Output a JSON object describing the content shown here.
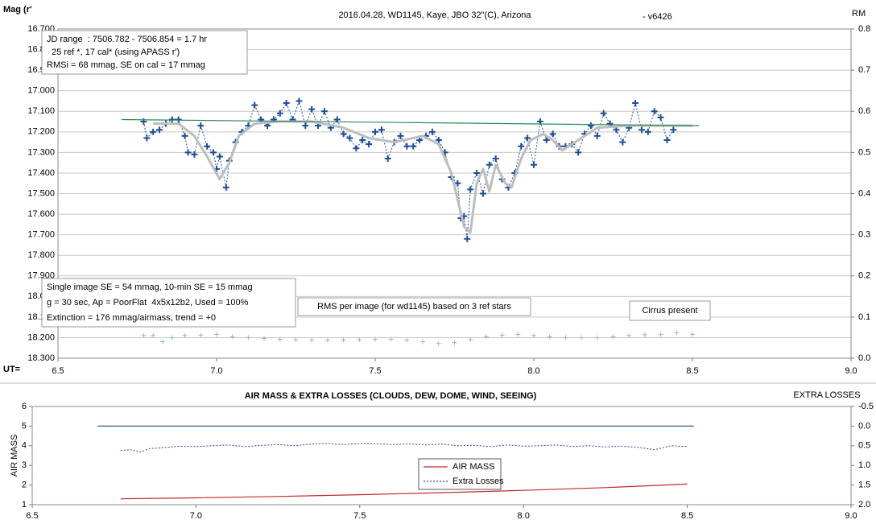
{
  "chart_data": [
    {
      "type": "line",
      "title": "2016.04.28,  WD1145, Kaye, JBO 32\"(C), Arizona",
      "subtitle": "- v6426",
      "ylabel": "Mag (r'",
      "y2label": "RM",
      "xlabel": "UT=",
      "xlim": [
        6.5,
        9.0
      ],
      "xticks": [
        6.5,
        {
          "value": 7.0,
          "label": "7.0"
        },
        7.5,
        {
          "value": 8.0,
          "label": "8.0"
        },
        8.5,
        {
          "value": 9.0,
          "label": "9.0"
        }
      ],
      "ylim": [
        16.7,
        18.3
      ],
      "y_reversed": true,
      "yticks": [
        {
          "value": 16.7,
          "label": "16.700"
        },
        {
          "value": 16.8,
          "label": "16.800"
        },
        {
          "value": 16.9,
          "label": "16.900"
        },
        {
          "value": 17.0,
          "label": "17.000"
        },
        {
          "value": 17.1,
          "label": "17.100"
        },
        {
          "value": 17.2,
          "label": "17.200"
        },
        {
          "value": 17.3,
          "label": "17.300"
        },
        {
          "value": 17.4,
          "label": "17.400"
        },
        {
          "value": 17.5,
          "label": "17.500"
        },
        {
          "value": 17.6,
          "label": "17.600"
        },
        {
          "value": 17.7,
          "label": "17.700"
        },
        {
          "value": 17.8,
          "label": "17.800"
        },
        {
          "value": 17.9,
          "label": "17.900"
        },
        {
          "value": 18.0,
          "label": "18.000"
        },
        {
          "value": 18.1,
          "label": "18.100"
        },
        {
          "value": 18.2,
          "label": "18.200"
        },
        {
          "value": 18.3,
          "label": "18.300"
        }
      ],
      "y2lim": [
        0.0,
        0.8
      ],
      "y2ticks": [
        {
          "value": 0.0,
          "label": "0.0"
        },
        0.1,
        0.2,
        0.3,
        0.4,
        0.5,
        0.6,
        0.7,
        0.8
      ],
      "grid": true,
      "annotations": [
        [
          "JD range  : 7506.782 - 7506.854 = 1.7 hr",
          "  25 ref *, 17 cal* (using APASS r')",
          "RMSi = 68 mmag, SE on cal = 17 mmag"
        ],
        [
          "Single image SE = 54 mmag, 10-min SE = 15 mmag",
          "g = 30 sec, Ap = PoorFlat  4x5x12b2, Used = 100%",
          "Extinction = 176 mmag/airmass, trend = +0"
        ],
        [
          "RMS per image (for wd1145) based on 3 ref stars"
        ],
        [
          "Cirrus present"
        ]
      ],
      "series": [
        {
          "color": "#1f4e9a",
          "line": "dashed",
          "marker": "plus",
          "x": [
            6.77,
            6.78,
            6.8,
            6.82,
            6.84,
            6.86,
            6.88,
            6.9,
            6.91,
            6.93,
            6.95,
            6.97,
            6.99,
            7.0,
            7.01,
            7.03,
            7.04,
            7.06,
            7.08,
            7.1,
            7.12,
            7.14,
            7.16,
            7.18,
            7.2,
            7.22,
            7.24,
            7.26,
            7.28,
            7.3,
            7.32,
            7.34,
            7.36,
            7.38,
            7.4,
            7.42,
            7.44,
            7.46,
            7.48,
            7.5,
            7.52,
            7.54,
            7.56,
            7.58,
            7.6,
            7.62,
            7.64,
            7.66,
            7.68,
            7.7,
            7.72,
            7.74,
            7.76,
            7.77,
            7.78,
            7.79,
            7.8,
            7.82,
            7.84,
            7.86,
            7.88,
            7.9,
            7.92,
            7.94,
            7.96,
            7.98,
            8.0,
            8.02,
            8.04,
            8.06,
            8.08,
            8.1,
            8.12,
            8.14,
            8.16,
            8.18,
            8.2,
            8.22,
            8.24,
            8.26,
            8.28,
            8.3,
            8.32,
            8.34,
            8.36,
            8.38,
            8.4,
            8.42,
            8.44
          ],
          "values": [
            17.15,
            17.23,
            17.2,
            17.19,
            17.16,
            17.14,
            17.14,
            17.22,
            17.3,
            17.31,
            17.17,
            17.27,
            17.3,
            17.38,
            17.32,
            17.47,
            17.34,
            17.25,
            17.2,
            17.17,
            17.07,
            17.14,
            17.17,
            17.14,
            17.11,
            17.06,
            17.14,
            17.05,
            17.17,
            17.09,
            17.17,
            17.1,
            17.18,
            17.14,
            17.21,
            17.23,
            17.28,
            17.24,
            17.26,
            17.2,
            17.19,
            17.33,
            17.25,
            17.22,
            17.27,
            17.27,
            17.24,
            17.22,
            17.2,
            17.24,
            17.3,
            17.42,
            17.45,
            17.62,
            17.61,
            17.72,
            17.48,
            17.4,
            17.5,
            17.36,
            17.33,
            17.43,
            17.47,
            17.4,
            17.27,
            17.23,
            17.36,
            17.15,
            17.24,
            17.21,
            17.27,
            17.27,
            17.26,
            17.3,
            17.21,
            17.17,
            17.22,
            17.11,
            17.16,
            17.19,
            17.25,
            17.18,
            17.06,
            17.19,
            17.2,
            17.1,
            17.13,
            17.24,
            17.19
          ]
        },
        {
          "color": "#bdbdbd",
          "line": "solid",
          "width": 3,
          "x": [
            6.8,
            6.88,
            6.93,
            6.97,
            7.01,
            7.04,
            7.07,
            7.12,
            7.2,
            7.3,
            7.4,
            7.48,
            7.56,
            7.65,
            7.7,
            7.74,
            7.78,
            7.8,
            7.82,
            7.84,
            7.86,
            7.88,
            7.91,
            7.93,
            7.96,
            7.99,
            8.03,
            8.06,
            8.09,
            8.14,
            8.2,
            8.3,
            8.5
          ],
          "values": [
            17.16,
            17.16,
            17.22,
            17.32,
            17.43,
            17.35,
            17.22,
            17.16,
            17.15,
            17.15,
            17.18,
            17.23,
            17.25,
            17.22,
            17.26,
            17.4,
            17.66,
            17.69,
            17.45,
            17.38,
            17.49,
            17.36,
            17.45,
            17.47,
            17.33,
            17.24,
            17.21,
            17.24,
            17.29,
            17.24,
            17.18,
            17.17,
            17.17
          ]
        },
        {
          "color": "#2e8b57",
          "line": "solid",
          "width": 1.2,
          "x": [
            6.7,
            8.52
          ],
          "values": [
            17.14,
            17.17
          ]
        },
        {
          "color": "#8fb8c4",
          "line": "none",
          "marker": "plus",
          "axis": "y2",
          "x": [
            6.77,
            6.8,
            6.83,
            6.86,
            6.9,
            6.95,
            7.0,
            7.05,
            7.1,
            7.15,
            7.2,
            7.25,
            7.3,
            7.35,
            7.4,
            7.45,
            7.5,
            7.55,
            7.6,
            7.65,
            7.7,
            7.75,
            7.8,
            7.85,
            7.9,
            7.95,
            8.0,
            8.05,
            8.1,
            8.15,
            8.2,
            8.25,
            8.3,
            8.35,
            8.4,
            8.45,
            8.5
          ],
          "values": [
            0.055,
            0.055,
            0.04,
            0.05,
            0.055,
            0.056,
            0.058,
            0.052,
            0.05,
            0.048,
            0.046,
            0.045,
            0.044,
            0.044,
            0.044,
            0.045,
            0.046,
            0.046,
            0.044,
            0.04,
            0.036,
            0.038,
            0.045,
            0.052,
            0.056,
            0.058,
            0.055,
            0.052,
            0.05,
            0.05,
            0.05,
            0.052,
            0.055,
            0.057,
            0.058,
            0.062,
            0.058
          ]
        }
      ]
    },
    {
      "type": "line",
      "title": "AIR MASS & EXTRA LOSSES (CLOUDS, DEW, DOME, WIND, SEEING)",
      "ylabel": "AIR MASS",
      "y2label": "EXTRA LOSSES",
      "xlim": [
        6.5,
        9.0
      ],
      "xticks": [
        6.5,
        {
          "value": 7.0,
          "label": "7.0"
        },
        7.5,
        {
          "value": 8.0,
          "label": "8.0"
        },
        8.5,
        {
          "value": 9.0,
          "label": "9.0"
        }
      ],
      "ylim": [
        1,
        6
      ],
      "yticks": [
        1,
        2,
        3,
        4,
        5,
        6
      ],
      "y2lim": [
        -0.5,
        2.0
      ],
      "y2_reversed": true,
      "y2ticks": [
        -0.5,
        {
          "value": 0.0,
          "label": "0.0"
        },
        0.5,
        {
          "value": 1.0,
          "label": "1.0"
        },
        1.5,
        {
          "value": 2.0,
          "label": "2.0"
        }
      ],
      "series": [
        {
          "name": "AIR MASS",
          "color": "#c0282d",
          "line": "solid",
          "width": 1.2,
          "x": [
            6.77,
            7.0,
            7.25,
            7.5,
            7.75,
            8.0,
            8.25,
            8.5
          ],
          "values": [
            1.3,
            1.35,
            1.42,
            1.51,
            1.61,
            1.73,
            1.87,
            2.05
          ]
        },
        {
          "name": "Extra Losses",
          "color": "#2f3fb0",
          "line": "dashed",
          "axis": "y2",
          "x": [
            6.77,
            6.8,
            6.83,
            6.86,
            6.9,
            6.95,
            7.0,
            7.05,
            7.1,
            7.15,
            7.2,
            7.25,
            7.3,
            7.35,
            7.4,
            7.45,
            7.5,
            7.55,
            7.6,
            7.65,
            7.7,
            7.75,
            7.8,
            7.85,
            7.9,
            7.95,
            8.0,
            8.05,
            8.1,
            8.15,
            8.2,
            8.25,
            8.3,
            8.35,
            8.4,
            8.45,
            8.5
          ],
          "values": [
            0.62,
            0.6,
            0.66,
            0.57,
            0.55,
            0.51,
            0.52,
            0.5,
            0.48,
            0.52,
            0.49,
            0.47,
            0.5,
            0.46,
            0.44,
            0.47,
            0.44,
            0.45,
            0.47,
            0.45,
            0.48,
            0.46,
            0.5,
            0.49,
            0.52,
            0.48,
            0.51,
            0.5,
            0.48,
            0.52,
            0.5,
            0.53,
            0.51,
            0.54,
            0.6,
            0.5,
            0.52
          ]
        },
        {
          "color": "#2a6478",
          "line": "solid",
          "width": 1.2,
          "axis": "y2",
          "x": [
            6.7,
            8.52
          ],
          "values": [
            0.0,
            0.0
          ]
        }
      ]
    }
  ]
}
